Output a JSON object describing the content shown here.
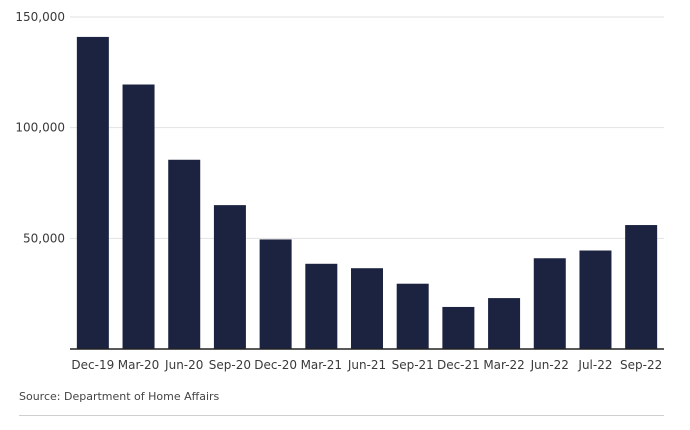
{
  "chart_data": {
    "type": "bar",
    "categories": [
      "Dec-19",
      "Mar-20",
      "Jun-20",
      "Sep-20",
      "Dec-20",
      "Mar-21",
      "Jun-21",
      "Sep-21",
      "Dec-21",
      "Mar-22",
      "Jun-22",
      "Jul-22",
      "Sep-22"
    ],
    "values": [
      141000,
      119500,
      85500,
      65000,
      49500,
      38500,
      36500,
      29500,
      19000,
      23000,
      41000,
      44500,
      56000
    ],
    "yticks": [
      50000,
      100000,
      150000
    ],
    "ytick_labels": [
      "50,000",
      "100,000",
      "150,000"
    ],
    "ylim": [
      0,
      150000
    ],
    "grid": true,
    "bar_color": "#1b2340",
    "title": "",
    "xlabel": "",
    "ylabel": ""
  },
  "source": "Source: Department of Home Affairs"
}
